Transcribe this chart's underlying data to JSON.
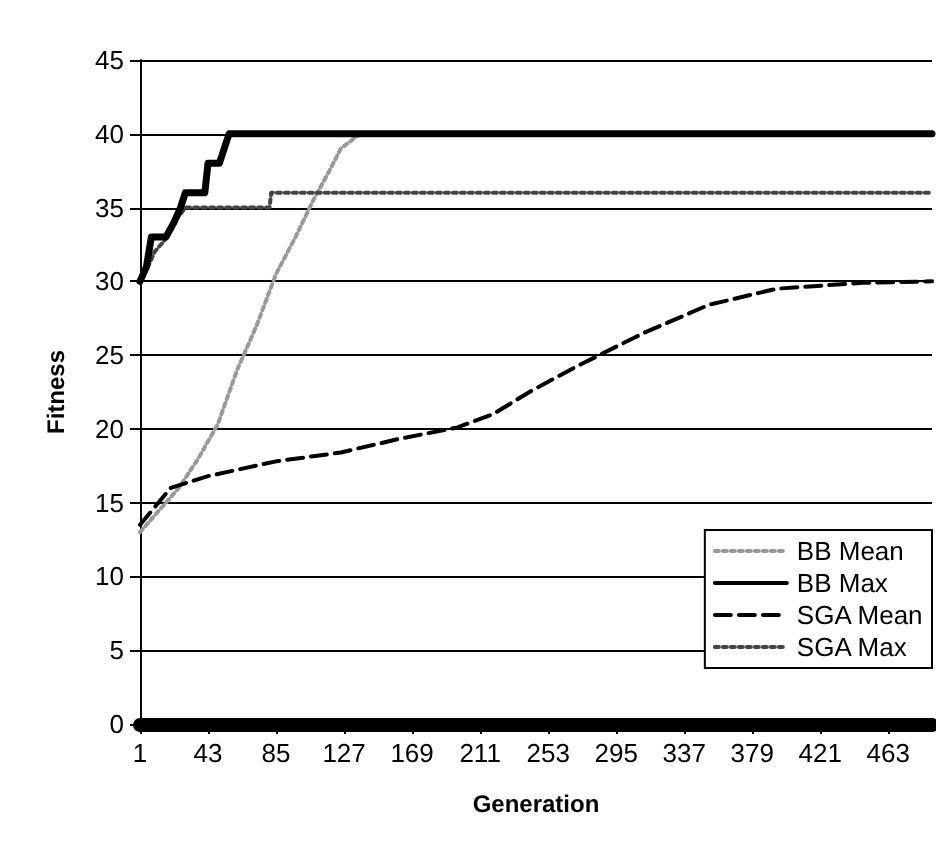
{
  "chart_data": {
    "type": "line",
    "xlabel": "Generation",
    "ylabel": "Fitness",
    "xlim": [
      1,
      490
    ],
    "xticks": [
      1,
      43,
      85,
      127,
      169,
      211,
      253,
      295,
      337,
      379,
      421,
      463
    ],
    "ylim": [
      0,
      45
    ],
    "yticks": [
      0,
      5,
      10,
      15,
      20,
      25,
      30,
      35,
      40,
      45
    ],
    "grid": "y",
    "legend": "bottom right",
    "marker": "none",
    "series": [
      {
        "name": "BB Mean",
        "color": "#999999",
        "line_style": "dotted",
        "x": [
          1,
          13,
          25,
          37,
          49,
          61,
          73,
          85,
          97,
          108,
          118,
          125,
          137
        ],
        "values": [
          13,
          14.5,
          16,
          18,
          20.3,
          24,
          27,
          30.5,
          33,
          35.5,
          37.5,
          39,
          40
        ]
      },
      {
        "name": "BB Max",
        "color": "#000000",
        "line_style": "solid",
        "x": [
          1,
          5,
          8,
          17,
          22,
          26,
          29,
          41,
          43,
          50,
          56,
          490
        ],
        "values": [
          30,
          31,
          33,
          33,
          34,
          35,
          36,
          36,
          38,
          38,
          40,
          40
        ]
      },
      {
        "name": "SGA Mean",
        "color": "#000000",
        "line_style": "dashed",
        "x": [
          1,
          20,
          43,
          85,
          125,
          160,
          197,
          219,
          243,
          270,
          312,
          352,
          394,
          447,
          490
        ],
        "values": [
          13.5,
          16,
          16.8,
          17.8,
          18.4,
          19.3,
          20.1,
          21,
          22.6,
          24.2,
          26.5,
          28.4,
          29.5,
          29.9,
          30
        ]
      },
      {
        "name": "SGA Max",
        "color": "#444444",
        "line_style": "dotted",
        "x": [
          1,
          6,
          10,
          18,
          22,
          29,
          81,
          82,
          490
        ],
        "values": [
          30,
          31,
          32,
          33,
          34,
          35,
          35,
          36,
          36
        ]
      }
    ]
  }
}
